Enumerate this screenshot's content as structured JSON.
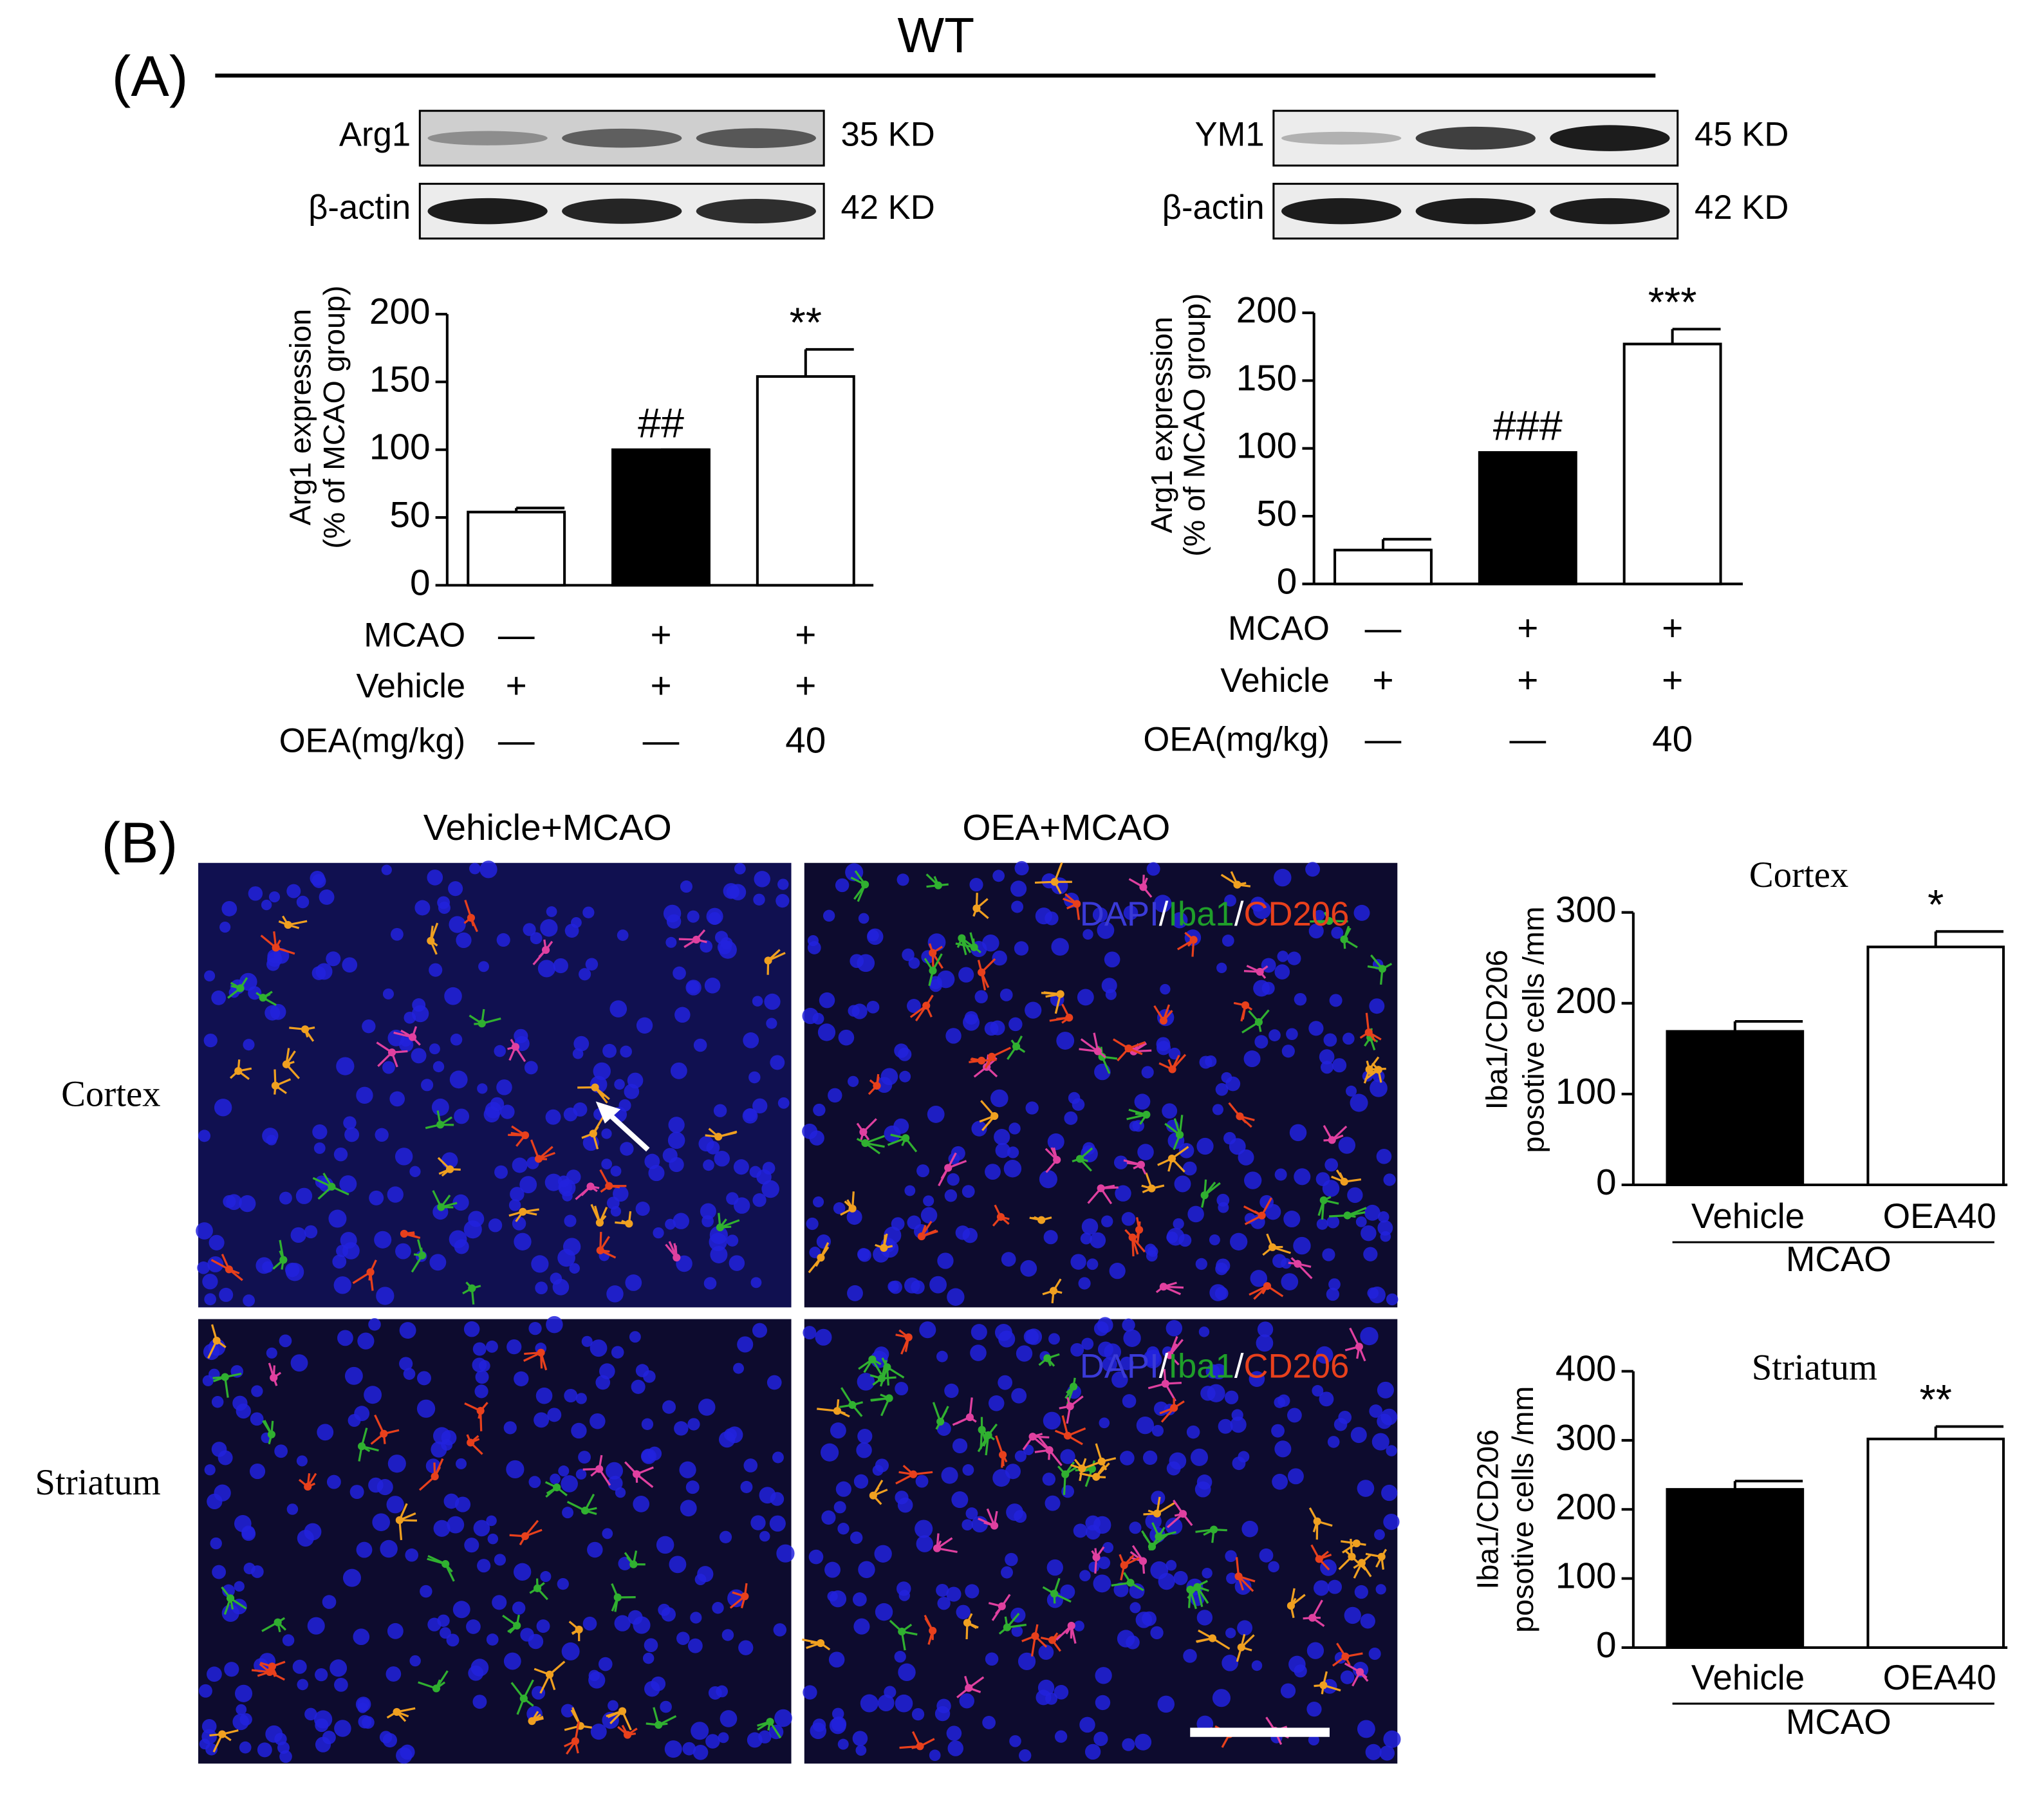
{
  "figure": {
    "panel_a": "(A)",
    "group": "WT",
    "blots": [
      {
        "label": "Arg1",
        "size": "35 KD"
      },
      {
        "label": "β-actin",
        "size": "42 KD"
      },
      {
        "label": "YM1",
        "size": "45 KD"
      },
      {
        "label": "β-actin",
        "size": "42 KD"
      }
    ],
    "panel_b": "(B)",
    "columns": [
      "Vehicle+MCAO",
      "OEA+MCAO"
    ],
    "rows": [
      "Cortex",
      "Striatum"
    ],
    "stain": [
      {
        "text": "DAPI",
        "color": "#3a3ad8"
      },
      {
        "text": "/",
        "color": "#ffffff"
      },
      {
        "text": "Iba1",
        "color": "#1f9e2a"
      },
      {
        "text": "/",
        "color": "#ffffff"
      },
      {
        "text": "CD206",
        "color": "#e8401c"
      }
    ]
  },
  "chart_data": [
    {
      "type": "bar",
      "y_label": [
        "Arg1 expression",
        "(% of MCAO group)"
      ],
      "values": [
        54,
        100,
        154
      ],
      "errors": [
        3,
        0,
        20
      ],
      "colors": [
        "#ffffff",
        "#000000",
        "#ffffff"
      ],
      "ylim": [
        0,
        200
      ],
      "yticks": [
        0,
        50,
        100,
        150,
        200
      ],
      "annotations": [
        {
          "index": 1,
          "text": "##"
        },
        {
          "index": 2,
          "text": "**"
        }
      ],
      "treatments": [
        {
          "label": "MCAO",
          "cells": [
            "—",
            "+",
            "+"
          ]
        },
        {
          "label": "Vehicle",
          "cells": [
            "+",
            "+",
            "+"
          ]
        },
        {
          "label": "OEA(mg/kg)",
          "cells": [
            "—",
            "—",
            "40"
          ]
        }
      ]
    },
    {
      "type": "bar",
      "y_label": [
        "Arg1 expression",
        "(% of MCAO group)"
      ],
      "values": [
        25,
        97,
        177
      ],
      "errors": [
        8,
        0,
        11
      ],
      "colors": [
        "#ffffff",
        "#000000",
        "#ffffff"
      ],
      "ylim": [
        0,
        200
      ],
      "yticks": [
        0,
        50,
        100,
        150,
        200
      ],
      "annotations": [
        {
          "index": 1,
          "text": "###"
        },
        {
          "index": 2,
          "text": "***"
        }
      ],
      "treatments": [
        {
          "label": "MCAO",
          "cells": [
            "—",
            "+",
            "+"
          ]
        },
        {
          "label": "Vehicle",
          "cells": [
            "+",
            "+",
            "+"
          ]
        },
        {
          "label": "OEA(mg/kg)",
          "cells": [
            "—",
            "—",
            "40"
          ]
        }
      ]
    },
    {
      "type": "bar",
      "title": "Cortex",
      "y_label": [
        "Iba1/CD206",
        "posotive cells /mm"
      ],
      "categories": [
        "Vehicle",
        "OEA40"
      ],
      "group_label": "MCAO",
      "values": [
        169,
        262
      ],
      "errors": [
        11,
        17
      ],
      "colors": [
        "#000000",
        "#ffffff"
      ],
      "ylim": [
        0,
        300
      ],
      "yticks": [
        0,
        100,
        200,
        300
      ],
      "annotations": [
        {
          "index": 1,
          "text": "*"
        }
      ]
    },
    {
      "type": "bar",
      "title": "Striatum",
      "y_label": [
        "Iba1/CD206",
        "posotive cells /mm"
      ],
      "categories": [
        "Vehicle",
        "OEA40"
      ],
      "group_label": "MCAO",
      "values": [
        229,
        302
      ],
      "errors": [
        12,
        18
      ],
      "colors": [
        "#000000",
        "#ffffff"
      ],
      "ylim": [
        0,
        400
      ],
      "yticks": [
        0,
        100,
        200,
        300,
        400
      ],
      "annotations": [
        {
          "index": 1,
          "text": "**"
        }
      ]
    }
  ]
}
